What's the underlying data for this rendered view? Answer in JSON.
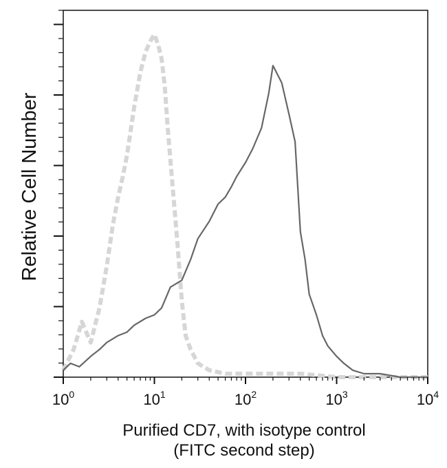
{
  "chart_data": {
    "type": "line",
    "title": "",
    "xlabel": "Purified CD7, with isotype control",
    "xlabel_line2": "(FITC second step)",
    "ylabel": "Relative Cell Number",
    "x_scale": "log",
    "xlim": [
      1,
      10000
    ],
    "ylim": [
      0,
      100
    ],
    "x_ticks": [
      {
        "base": "10",
        "exp": "0"
      },
      {
        "base": "10",
        "exp": "1"
      },
      {
        "base": "10",
        "exp": "2"
      },
      {
        "base": "10",
        "exp": "3"
      },
      {
        "base": "10",
        "exp": "4"
      }
    ],
    "grid": false,
    "legend": "none",
    "series": [
      {
        "style": "dashed",
        "color": "#d6d6d6",
        "x": [
          1.0,
          1.3,
          1.6,
          2.0,
          2.5,
          3.0,
          3.5,
          4.0,
          4.5,
          5.0,
          6.0,
          7.0,
          8.0,
          9.0,
          10.0,
          11.0,
          12.0,
          13.0,
          14.0,
          16.0,
          18.0,
          20.0,
          22.0,
          25.0,
          30.0,
          40.0,
          60.0,
          100.0,
          200.0,
          400.0,
          1000.0,
          10000.0
        ],
        "y": [
          2,
          8,
          16,
          10,
          20,
          32,
          44,
          52,
          58,
          64,
          78,
          88,
          94,
          97,
          99,
          96,
          92,
          84,
          72,
          54,
          38,
          22,
          12,
          8,
          4,
          2,
          1,
          1,
          1,
          1,
          0,
          0
        ]
      },
      {
        "style": "solid",
        "color": "#666666",
        "x": [
          1.0,
          1.2,
          1.5,
          2.0,
          2.5,
          3.0,
          4.0,
          5.0,
          6.0,
          8.0,
          10.0,
          12.0,
          15.0,
          20.0,
          25.0,
          30.0,
          40.0,
          50.0,
          60.0,
          70.0,
          80.0,
          100.0,
          120.0,
          150.0,
          180.0,
          200.0,
          250.0,
          300.0,
          350.0,
          400.0,
          450.0,
          500.0,
          600.0,
          700.0,
          800.0,
          1000.0,
          1200.0,
          1500.0,
          2000.0,
          3000.0,
          5000.0,
          10000.0
        ],
        "y": [
          2,
          4,
          3,
          6,
          8,
          10,
          12,
          13,
          15,
          17,
          18,
          20,
          26,
          28,
          34,
          40,
          45,
          50,
          52,
          55,
          58,
          62,
          66,
          72,
          82,
          90,
          85,
          76,
          68,
          42,
          34,
          24,
          18,
          12,
          9,
          6,
          4,
          2,
          1,
          1,
          0,
          0
        ]
      }
    ]
  }
}
